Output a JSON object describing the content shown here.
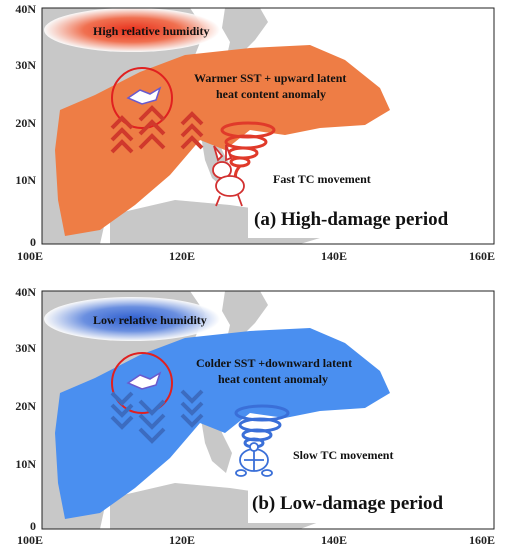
{
  "panels": [
    {
      "id": "a",
      "title": "(a) High-damage period",
      "humidity_label": "High relative humidity",
      "sst_label_line1": "Warmer  SST + upward  latent",
      "sst_label_line2": "heat content anomaly",
      "tc_label": "Fast TC movement",
      "y_ticks": [
        "40N",
        "30N",
        "20N",
        "10N",
        "0"
      ],
      "x_ticks": [
        "100E",
        "120E",
        "140E",
        "160E"
      ],
      "colors": {
        "anomaly": "#ee7d45",
        "humidity": "#e8452a",
        "arrows": "#d0392c",
        "tc": "#e03a2a"
      }
    },
    {
      "id": "b",
      "title": "(b) Low-damage period",
      "humidity_label": "Low relative humidity",
      "sst_label_line1": "Colder SST +downward  latent",
      "sst_label_line2": "heat content anomaly",
      "tc_label": "Slow TC movement",
      "y_ticks": [
        "40N",
        "30N",
        "20N",
        "10N",
        "0"
      ],
      "x_ticks": [
        "100E",
        "120E",
        "140E",
        "160E"
      ],
      "colors": {
        "anomaly": "#4a8ff0",
        "humidity": "#3a6fd8",
        "arrows": "#3c6cc0",
        "tc": "#3a6fd8"
      }
    }
  ]
}
